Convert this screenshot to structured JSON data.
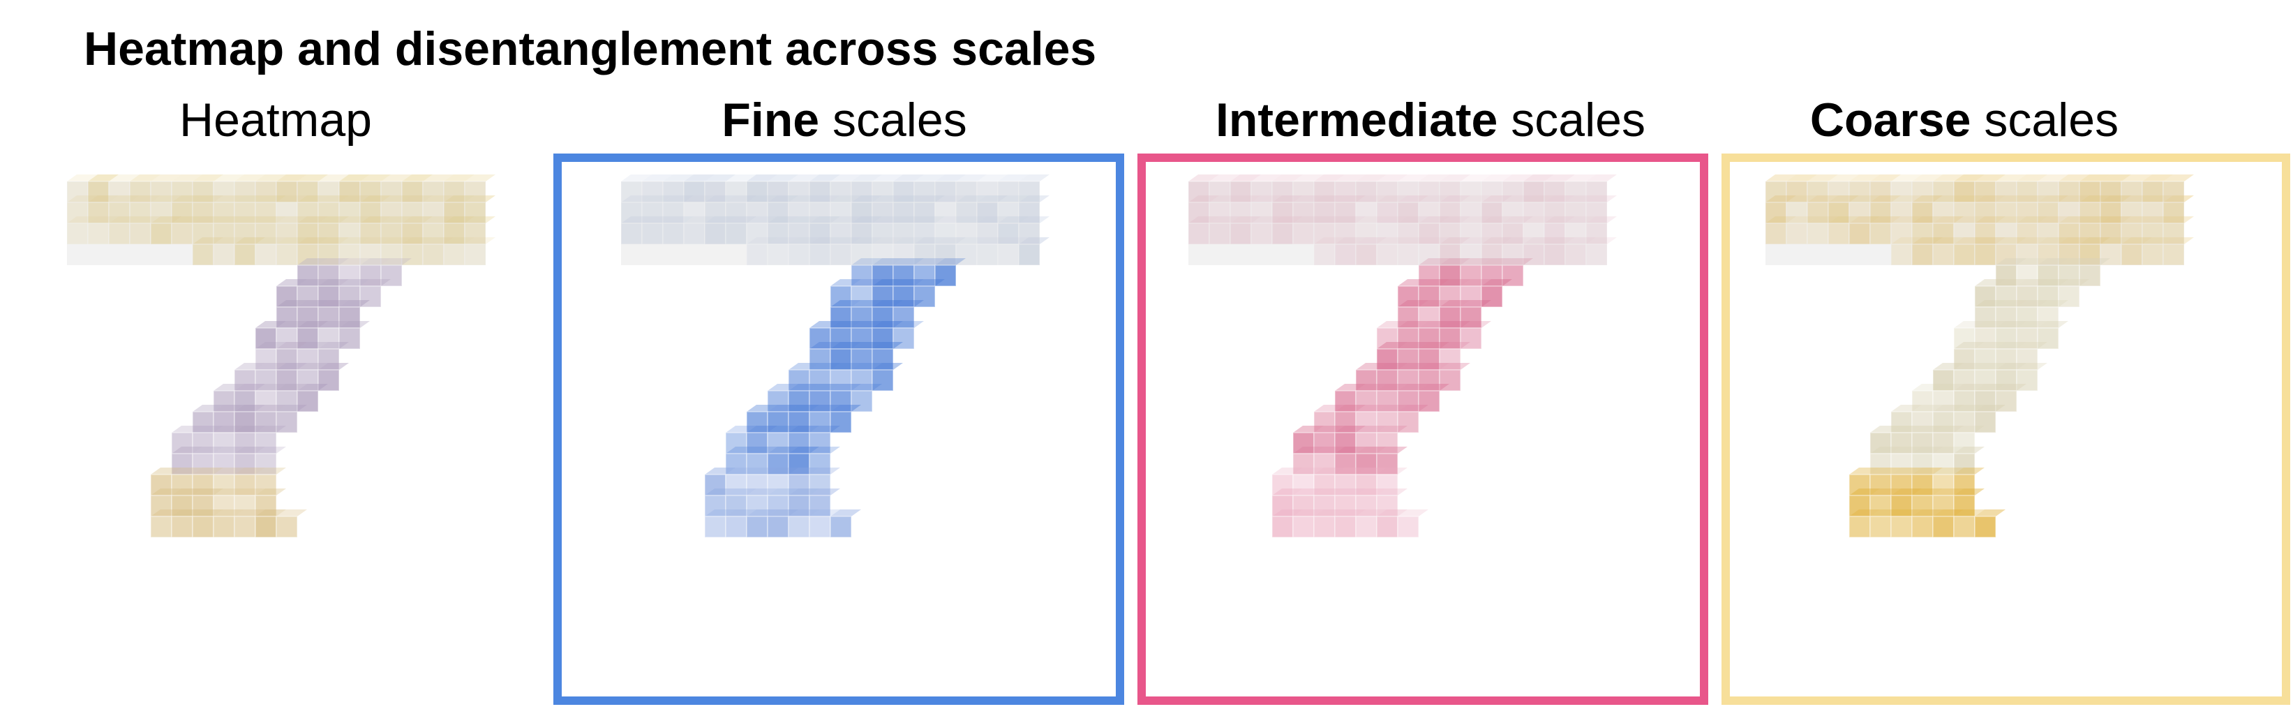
{
  "title": "Heatmap and disentanglement across scales",
  "panels": [
    {
      "id": "heatmap",
      "bold": "",
      "rest": "Heatmap",
      "frame": false,
      "colors": {
        "top": "#d8b64a",
        "stem": "#a897b8",
        "base": "#d4b878",
        "accent": "#9aa8cc"
      }
    },
    {
      "id": "fine",
      "bold": "Fine",
      "rest": " scales",
      "frame": true,
      "frame_color": "#4c86e0",
      "colors": {
        "top": "#a9b9d6",
        "stem": "#3f74d4",
        "base": "#8aa6e0",
        "accent": "#6b94dc"
      }
    },
    {
      "id": "intermediate",
      "bold": "Intermediate",
      "rest": " scales",
      "frame": true,
      "frame_color": "#e8568a",
      "colors": {
        "top": "#e0a6b8",
        "stem": "#d76a8e",
        "base": "#ecb0c4",
        "accent": "#e27ea0"
      }
    },
    {
      "id": "coarse",
      "bold": "Coarse",
      "rest": " scales",
      "frame": true,
      "frame_color": "#f7df9a",
      "colors": {
        "top": "#dcaa2c",
        "stem": "#d6cfb0",
        "base": "#deac30",
        "accent": "#cfc7a4"
      }
    }
  ]
}
